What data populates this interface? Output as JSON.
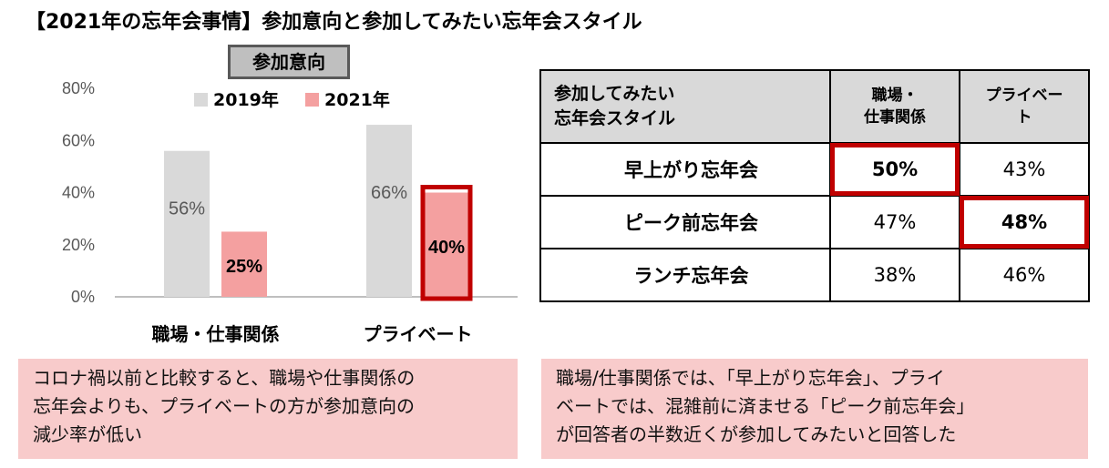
{
  "title": "【2021年の忘年会事情】参加意向と参加してみたい忘年会スタイル",
  "colors": {
    "y2019": "#d9d9d9",
    "y2021": "#f4a0a0",
    "highlight": "#c00000",
    "note_bg": "#f8cbcb"
  },
  "chart_data": {
    "type": "bar",
    "title": "参加意向",
    "categories": [
      "職場・仕事関係",
      "プライベート"
    ],
    "series": [
      {
        "name": "2019年",
        "values": [
          56,
          66
        ],
        "labels": [
          "56%",
          "66%"
        ]
      },
      {
        "name": "2021年",
        "values": [
          25,
          40
        ],
        "labels": [
          "25%",
          "40%"
        ]
      }
    ],
    "ylim": [
      0,
      80
    ],
    "yticks": [
      "0%",
      "20%",
      "40%",
      "60%",
      "80%"
    ],
    "grid": false,
    "legend": "top",
    "highlighted": {
      "series": 1,
      "category": 1
    }
  },
  "table": {
    "headers": [
      "参加してみたい\n忘年会スタイル",
      "職場・\n仕事関係",
      "プライベー\nト"
    ],
    "rows": [
      {
        "name": "早上がり忘年会",
        "work": "50%",
        "private": "43%",
        "highlight": "work"
      },
      {
        "name": "ピーク前忘年会",
        "work": "47%",
        "private": "48%",
        "highlight": "private"
      },
      {
        "name": "ランチ忘年会",
        "work": "38%",
        "private": "46%",
        "highlight": ""
      }
    ]
  },
  "notes": {
    "left": "コロナ禍以前と比較すると、職場や仕事関係の\n忘年会よりも、プライベートの方が参加意向の\n減少率が低い",
    "right": "職場/仕事関係では、「早上がり忘年会」、プライ\nベートでは、混雑前に済ませる「ピーク前忘年会」\nが回答者の半数近くが参加してみたいと回答した"
  }
}
